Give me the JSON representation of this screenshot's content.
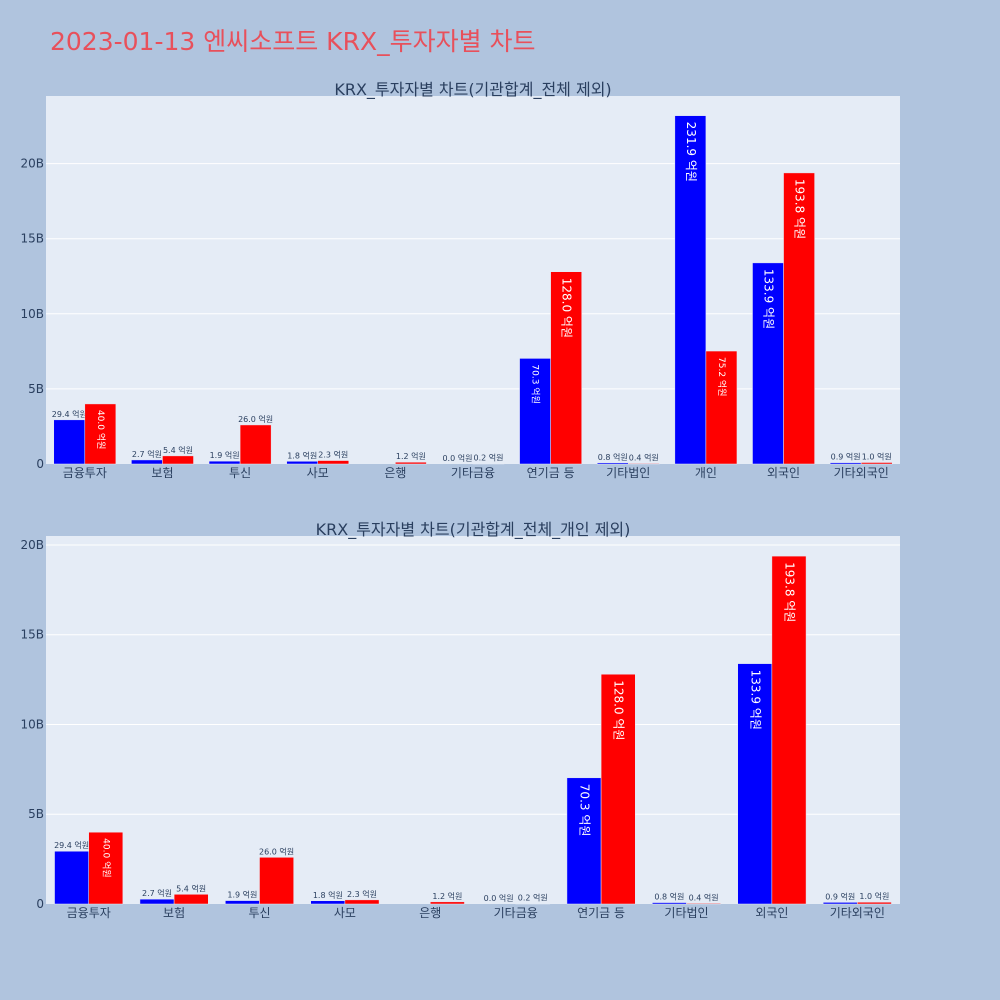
{
  "page": {
    "title": "2023-01-13 엔씨소프트 KRX_투자자별 차트"
  },
  "colors": {
    "buy": "#0000ff",
    "sell": "#ff0000",
    "title": "#e8505b",
    "background": "#b0c4de",
    "plot_background": "#e5ecf6",
    "text": "#2a3f5f"
  },
  "chart_data": [
    {
      "type": "bar",
      "title": "KRX_투자자별 차트(기관합계_전체 제외)",
      "categories": [
        "금융투자",
        "보험",
        "투신",
        "사모",
        "은행",
        "기타금융",
        "연기금 등",
        "기타법인",
        "개인",
        "외국인",
        "기타외국인"
      ],
      "series": [
        {
          "color": "#0000ff",
          "values": [
            2940000000.0,
            270000000.0,
            190000000.0,
            180000000.0,
            0.0,
            0.0,
            7030000000.0,
            80000000.0,
            23190000000.0,
            13390000000.0,
            90000000.0
          ],
          "labels": [
            "29.4 억원",
            "2.7 억원",
            "1.9 억원",
            "1.8 억원",
            "",
            "0.0 억원",
            "70.3 억원",
            "0.8 억원",
            "231.9 억원",
            "133.9 억원",
            "0.9 억원"
          ]
        },
        {
          "color": "#ff0000",
          "values": [
            4000000000.0,
            540000000.0,
            2600000000.0,
            230000000.0,
            120000000.0,
            20000000.0,
            12800000000.0,
            40000000.0,
            7520000000.0,
            19380000000.0,
            100000000.0
          ],
          "labels": [
            "40.0 억원",
            "5.4 억원",
            "26.0 억원",
            "2.3 억원",
            "1.2 억원",
            "0.2 억원",
            "128.0 억원",
            "0.4 억원",
            "75.2 억원",
            "193.8 억원",
            "1.0 억원"
          ]
        }
      ],
      "y_ticks": [
        {
          "value": 0,
          "label": "0"
        },
        {
          "value": 5000000000.0,
          "label": "5B"
        },
        {
          "value": 10000000000.0,
          "label": "10B"
        },
        {
          "value": 15000000000.0,
          "label": "15B"
        },
        {
          "value": 20000000000.0,
          "label": "20B"
        }
      ],
      "ylim": [
        0,
        24500000000.0
      ],
      "grid": true,
      "legend": "none"
    },
    {
      "type": "bar",
      "title": "KRX_투자자별 차트(기관합계_전체_개인 제외)",
      "categories": [
        "금융투자",
        "보험",
        "투신",
        "사모",
        "은행",
        "기타금융",
        "연기금 등",
        "기타법인",
        "외국인",
        "기타외국인"
      ],
      "series": [
        {
          "color": "#0000ff",
          "values": [
            2940000000.0,
            270000000.0,
            190000000.0,
            180000000.0,
            0.0,
            0.0,
            7030000000.0,
            80000000.0,
            13390000000.0,
            90000000.0
          ],
          "labels": [
            "29.4 억원",
            "2.7 억원",
            "1.9 억원",
            "1.8 억원",
            "",
            "0.0 억원",
            "70.3 억원",
            "0.8 억원",
            "133.9 억원",
            "0.9 억원"
          ]
        },
        {
          "color": "#ff0000",
          "values": [
            4000000000.0,
            540000000.0,
            2600000000.0,
            230000000.0,
            120000000.0,
            20000000.0,
            12800000000.0,
            40000000.0,
            19380000000.0,
            100000000.0
          ],
          "labels": [
            "40.0 억원",
            "5.4 억원",
            "26.0 억원",
            "2.3 억원",
            "1.2 억원",
            "0.2 억원",
            "128.0 억원",
            "0.4 억원",
            "193.8 억원",
            "1.0 억원"
          ]
        }
      ],
      "y_ticks": [
        {
          "value": 0,
          "label": "0"
        },
        {
          "value": 5000000000.0,
          "label": "5B"
        },
        {
          "value": 10000000000.0,
          "label": "10B"
        },
        {
          "value": 15000000000.0,
          "label": "15B"
        },
        {
          "value": 20000000000.0,
          "label": "20B"
        }
      ],
      "ylim": [
        0,
        20500000000.0
      ],
      "grid": true,
      "legend": "none"
    }
  ]
}
